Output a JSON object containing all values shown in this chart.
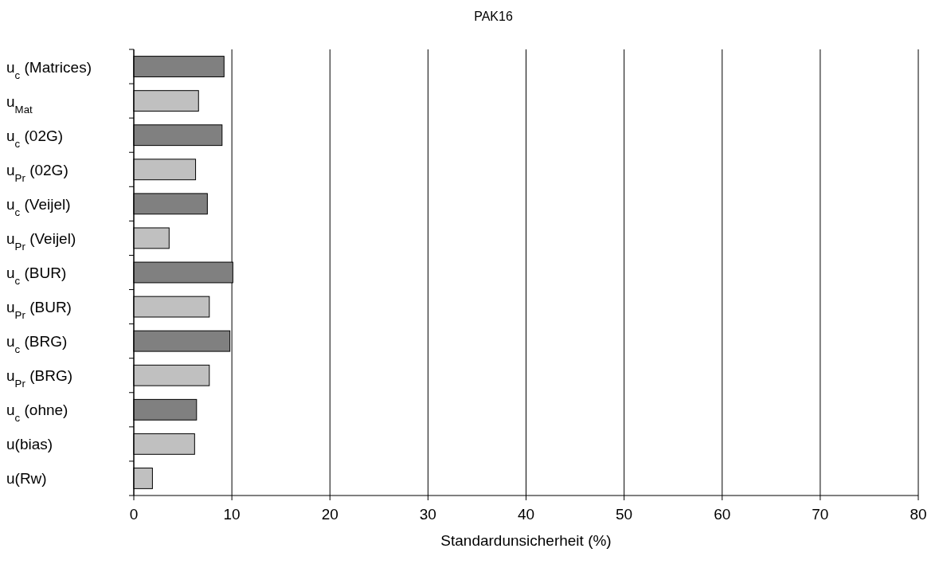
{
  "chart_data": {
    "type": "bar",
    "orientation": "horizontal",
    "title": "PAK16",
    "xlabel": "Standardunsicherheit (%)",
    "categories": [
      "u$_{c}$ (Matrices)",
      "u$_{Mat}$",
      "u$_{c}$ (02G)",
      "u$_{Pr}$ (02G)",
      "u$_{c}$ (Veijel)",
      "u$_{Pr}$ (Veijel)",
      "u$_{c}$ (BUR)",
      "u$_{Pr}$ (BUR)",
      "u$_{c}$ (BRG)",
      "u$_{Pr}$ (BRG)",
      "u$_{c}$ (ohne)",
      "u(bias)",
      "u(Rw)"
    ],
    "values": [
      9.2,
      6.6,
      9.0,
      6.3,
      7.5,
      3.6,
      10.1,
      7.7,
      9.8,
      7.7,
      6.4,
      6.2,
      1.9
    ],
    "colors": [
      "#808080",
      "#c0c0c0",
      "#808080",
      "#c0c0c0",
      "#808080",
      "#c0c0c0",
      "#808080",
      "#c0c0c0",
      "#808080",
      "#c0c0c0",
      "#808080",
      "#c0c0c0",
      "#c0c0c0"
    ],
    "xlim": [
      0,
      80
    ],
    "xticks": [
      0,
      10,
      20,
      30,
      40,
      50,
      60,
      70,
      80
    ],
    "grid": "x"
  }
}
